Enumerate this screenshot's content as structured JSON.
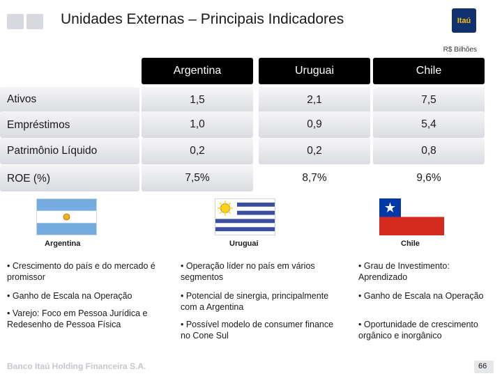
{
  "header": {
    "title": "Unidades Externas – Principais Indicadores",
    "logo_text": "Itaú",
    "unit_note": "R$ Bilhões"
  },
  "table": {
    "columns": [
      "Argentina",
      "Uruguai",
      "Chile"
    ],
    "rows": [
      {
        "label": "Ativos",
        "values": [
          "1,5",
          "2,1",
          "7,5"
        ]
      },
      {
        "label": "Empréstimos",
        "values": [
          "1,0",
          "0,9",
          "5,4"
        ]
      },
      {
        "label": "Patrimônio Líquido",
        "values": [
          "0,2",
          "0,2",
          "0,8"
        ]
      },
      {
        "label": "ROE (%)",
        "values": [
          "7,5%",
          "8,7%",
          "9,6%"
        ]
      }
    ]
  },
  "flags": [
    {
      "caption": "Argentina",
      "icon": "argentina-flag-icon"
    },
    {
      "caption": "Uruguai",
      "icon": "uruguay-flag-icon"
    },
    {
      "caption": "Chile",
      "icon": "chile-flag-icon"
    }
  ],
  "bullets": {
    "argentina": [
      "• Crescimento do país e do mercado é promissor",
      "• Ganho de Escala na Operação",
      "• Varejo: Foco em Pessoa Jurídica e Redesenho de Pessoa Física"
    ],
    "uruguay": [
      "• Operação líder no país em vários segmentos",
      "• Potencial de sinergia, principalmente com a Argentina",
      "• Possível modelo de consumer finance no Cone Sul"
    ],
    "chile": [
      "• Grau de Investimento: Aprendizado",
      "• Ganho de Escala na Operação",
      "• Oportunidade de crescimento orgânico e inorgânico"
    ]
  },
  "footer": {
    "company": "Banco Itaú Holding Financeira S.A.",
    "page": "66"
  },
  "colors": {
    "header_cell": "#000000",
    "itau_blue": "#10306e",
    "itau_yellow": "#f5c400",
    "argentina_blue": "#74acdf",
    "uruguay_blue": "#3b4fa0",
    "chile_red": "#d52b1e",
    "chile_blue": "#0039a6"
  }
}
